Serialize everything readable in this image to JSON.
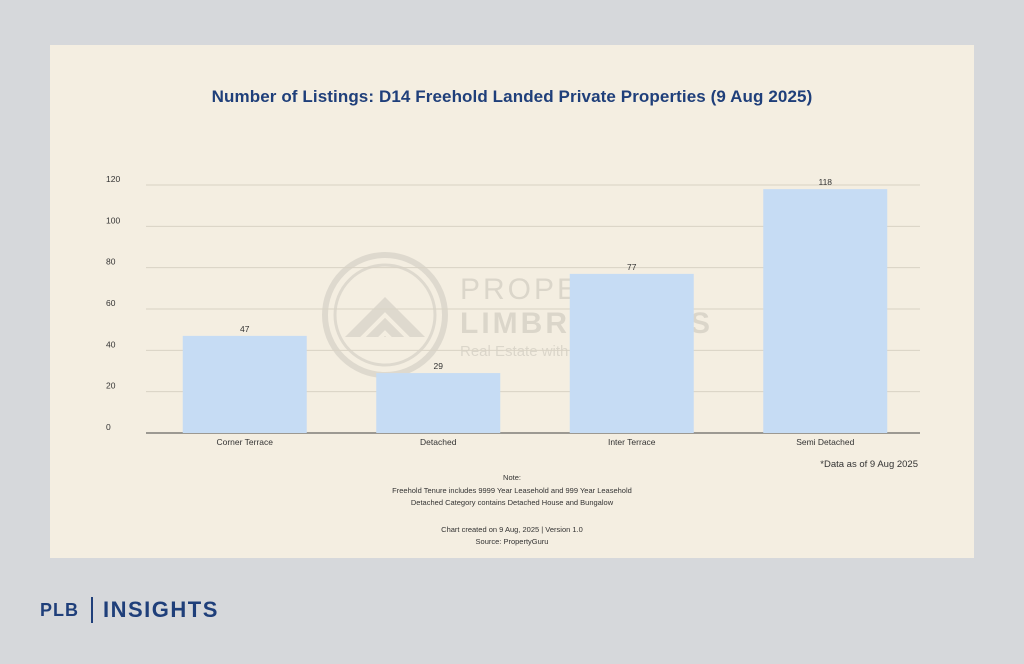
{
  "chart_data": {
    "type": "bar",
    "title": "Number of Listings: D14 Freehold Landed Private Properties (9 Aug 2025)",
    "categories": [
      "Corner Terrace",
      "Detached",
      "Inter Terrace",
      "Semi Detached"
    ],
    "values": [
      47,
      29,
      77,
      118
    ],
    "data_labels": [
      "47",
      "29",
      "77",
      "118"
    ],
    "ylim": [
      0,
      120
    ],
    "yticks": [
      "0",
      "20",
      "40",
      "60",
      "80",
      "100",
      "120"
    ],
    "xlabel": "",
    "ylabel": "",
    "grid": true,
    "bar_color": "#c6dcf4",
    "title_color": "#1f3f7a"
  },
  "annotation": "*Data as of 9 Aug 2025",
  "notes": {
    "heading": "Note:",
    "line1": "Freehold Tenure includes 9999 Year Leasehold and 999 Year Leasehold",
    "line2": "Detached Category contains Detached House and Bungalow",
    "created": "Chart created on 9 Aug, 2025 | Version 1.0",
    "source": "Source: PropertyGuru"
  },
  "watermark": {
    "line1": "PROPERTY",
    "line2": "LIMBROTHERS",
    "line3": "Real Estate with Integrity"
  },
  "brand": {
    "left": "PLB",
    "right": "INSIGHTS"
  }
}
